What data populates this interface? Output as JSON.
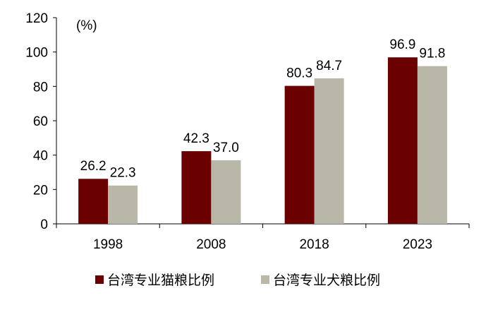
{
  "chart_data": {
    "type": "bar",
    "unit_label": "(%)",
    "categories": [
      "1998",
      "2008",
      "2018",
      "2023"
    ],
    "series": [
      {
        "name": "台湾专业猫粮比例",
        "color": "#6b0000",
        "values": [
          26.2,
          42.3,
          80.3,
          96.9
        ],
        "labels": [
          "26.2",
          "42.3",
          "80.3",
          "96.9"
        ]
      },
      {
        "name": "台湾专业犬粮比例",
        "color": "#b9b8a8",
        "values": [
          22.3,
          37.0,
          84.7,
          91.8
        ],
        "labels": [
          "22.3",
          "37.0",
          "84.7",
          "91.8"
        ]
      }
    ],
    "ylim": [
      0,
      120
    ],
    "yticks": [
      "0",
      "20",
      "40",
      "60",
      "80",
      "100",
      "120"
    ],
    "grid": false,
    "legend": "bottom"
  }
}
